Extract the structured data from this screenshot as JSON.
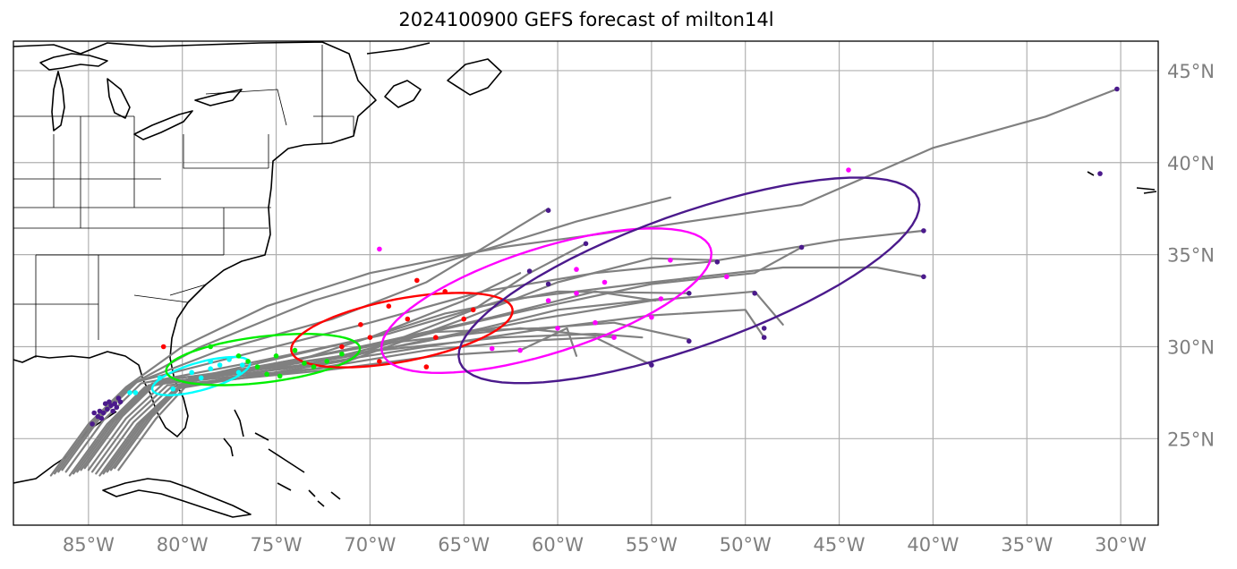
{
  "title": "2024100900 GEFS forecast of milton14l",
  "chart_data": {
    "type": "map",
    "title": "2024100900 GEFS forecast of milton14l",
    "projection": "PlateCarree",
    "lon_range": [
      -89,
      -28
    ],
    "lat_range": [
      20.3,
      46.6
    ],
    "grid": true,
    "lon_ticks": [
      {
        "value": -85,
        "label": "85°W"
      },
      {
        "value": -80,
        "label": "80°W"
      },
      {
        "value": -75,
        "label": "75°W"
      },
      {
        "value": -70,
        "label": "70°W"
      },
      {
        "value": -65,
        "label": "65°W"
      },
      {
        "value": -60,
        "label": "60°W"
      },
      {
        "value": -55,
        "label": "55°W"
      },
      {
        "value": -50,
        "label": "50°W"
      },
      {
        "value": -45,
        "label": "45°W"
      },
      {
        "value": -40,
        "label": "40°W"
      },
      {
        "value": -35,
        "label": "35°W"
      },
      {
        "value": -30,
        "label": "30°W"
      }
    ],
    "lat_ticks": [
      {
        "value": 25,
        "label": "25°N"
      },
      {
        "value": 30,
        "label": "30°N"
      },
      {
        "value": 35,
        "label": "35°N"
      },
      {
        "value": 40,
        "label": "40°N"
      },
      {
        "value": 45,
        "label": "45°N"
      }
    ],
    "colors": {
      "track": "#808080",
      "coast": "#000000",
      "grid": "#b0b0b0",
      "stage1": "#4b1a8c",
      "stage2": "#00ffff",
      "stage3": "#00ee00",
      "stage4": "#ff0000",
      "stage5": "#ff00ff",
      "stage6": "#4b1a8c"
    },
    "ellipses": [
      {
        "color": "#00ffff",
        "center": [
          -79.0,
          28.4
        ],
        "semi_major": 2.7,
        "semi_minor": 0.75,
        "angle": 16
      },
      {
        "color": "#00ee00",
        "center": [
          -75.7,
          29.3
        ],
        "semi_major": 5.2,
        "semi_minor": 1.25,
        "angle": 7
      },
      {
        "color": "#ff0000",
        "center": [
          -68.3,
          30.9
        ],
        "semi_major": 6.0,
        "semi_minor": 1.7,
        "angle": 11
      },
      {
        "color": "#ff00ff",
        "center": [
          -60.6,
          32.5
        ],
        "semi_major": 9.2,
        "semi_minor": 2.85,
        "angle": 18
      },
      {
        "color": "#4b1a8c",
        "center": [
          -53.0,
          33.6
        ],
        "semi_major": 13.0,
        "semi_minor": 3.6,
        "angle": 20
      }
    ],
    "tracks": [
      [
        [
          -87.0,
          23.0
        ],
        [
          -85.0,
          25.8
        ],
        [
          -83.0,
          27.8
        ],
        [
          -80.0,
          30.0
        ],
        [
          -75.5,
          32.2
        ],
        [
          -70.0,
          34.0
        ],
        [
          -63.0,
          35.4
        ],
        [
          -55.0,
          36.5
        ],
        [
          -47.0,
          37.7
        ],
        [
          -40.0,
          40.8
        ],
        [
          -34.0,
          42.5
        ],
        [
          -30.2,
          44.0
        ]
      ],
      [
        [
          -86.8,
          23.1
        ],
        [
          -84.8,
          25.9
        ],
        [
          -82.8,
          27.9
        ],
        [
          -79.0,
          30.0
        ],
        [
          -73.0,
          32.5
        ],
        [
          -66.0,
          34.6
        ],
        [
          -59.0,
          36.8
        ],
        [
          -54.0,
          38.1
        ]
      ],
      [
        [
          -86.6,
          23.2
        ],
        [
          -84.6,
          26.0
        ],
        [
          -82.6,
          28.0
        ],
        [
          -78.0,
          29.8
        ],
        [
          -72.0,
          31.5
        ],
        [
          -67.0,
          33.5
        ],
        [
          -60.5,
          37.5
        ]
      ],
      [
        [
          -86.4,
          23.3
        ],
        [
          -84.4,
          26.1
        ],
        [
          -82.4,
          28.1
        ],
        [
          -77.0,
          29.5
        ],
        [
          -70.0,
          31.3
        ],
        [
          -64.0,
          33.0
        ],
        [
          -58.0,
          34.0
        ],
        [
          -52.0,
          34.6
        ],
        [
          -45.0,
          35.8
        ],
        [
          -40.5,
          36.3
        ]
      ],
      [
        [
          -86.2,
          23.2
        ],
        [
          -84.2,
          26.0
        ],
        [
          -82.2,
          28.0
        ],
        [
          -76.0,
          29.2
        ],
        [
          -69.0,
          30.7
        ],
        [
          -63.0,
          32.5
        ],
        [
          -55.0,
          33.5
        ],
        [
          -48.0,
          34.3
        ],
        [
          -43.0,
          34.3
        ],
        [
          -40.5,
          33.8
        ]
      ],
      [
        [
          -86.0,
          23.0
        ],
        [
          -84.0,
          25.8
        ],
        [
          -82.0,
          27.8
        ],
        [
          -75.5,
          29.0
        ],
        [
          -68.0,
          30.5
        ],
        [
          -61.5,
          32.0
        ],
        [
          -55.0,
          33.4
        ],
        [
          -49.5,
          34.0
        ],
        [
          -47.0,
          35.4
        ]
      ],
      [
        [
          -85.8,
          23.1
        ],
        [
          -83.8,
          25.9
        ],
        [
          -81.8,
          27.9
        ],
        [
          -75.0,
          28.9
        ],
        [
          -67.5,
          30.2
        ],
        [
          -61.0,
          31.5
        ],
        [
          -55.0,
          32.5
        ],
        [
          -49.5,
          33.0
        ],
        [
          -48.0,
          31.2
        ]
      ],
      [
        [
          -85.6,
          23.2
        ],
        [
          -83.6,
          26.0
        ],
        [
          -81.6,
          28.0
        ],
        [
          -74.5,
          28.8
        ],
        [
          -67.0,
          30.0
        ],
        [
          -60.5,
          31.0
        ],
        [
          -55.0,
          31.7
        ],
        [
          -50.0,
          32.0
        ],
        [
          -49.0,
          30.5
        ]
      ],
      [
        [
          -85.4,
          23.3
        ],
        [
          -83.4,
          26.1
        ],
        [
          -81.4,
          28.1
        ],
        [
          -74.0,
          29.2
        ],
        [
          -66.0,
          31.8
        ],
        [
          -60.0,
          33.0
        ],
        [
          -53.0,
          32.9
        ]
      ],
      [
        [
          -85.2,
          23.4
        ],
        [
          -83.2,
          26.2
        ],
        [
          -81.2,
          28.2
        ],
        [
          -73.5,
          29.0
        ],
        [
          -66.5,
          30.8
        ],
        [
          -61.0,
          31.0
        ],
        [
          -57.0,
          31.3
        ],
        [
          -53.0,
          30.4
        ]
      ],
      [
        [
          -85.0,
          23.3
        ],
        [
          -83.0,
          26.1
        ],
        [
          -81.0,
          28.0
        ],
        [
          -73.0,
          28.8
        ],
        [
          -67.0,
          29.8
        ],
        [
          -62.0,
          30.3
        ],
        [
          -58.0,
          30.5
        ],
        [
          -55.0,
          29.0
        ]
      ],
      [
        [
          -84.8,
          23.2
        ],
        [
          -82.8,
          26.0
        ],
        [
          -80.8,
          27.9
        ],
        [
          -72.5,
          28.7
        ],
        [
          -66.5,
          29.5
        ],
        [
          -62.0,
          29.8
        ],
        [
          -59.5,
          31.0
        ],
        [
          -59.0,
          29.5
        ]
      ],
      [
        [
          -84.6,
          23.1
        ],
        [
          -82.6,
          25.9
        ],
        [
          -80.6,
          27.8
        ],
        [
          -72.0,
          28.9
        ],
        [
          -65.0,
          31.5
        ],
        [
          -60.0,
          33.5
        ],
        [
          -55.0,
          34.8
        ],
        [
          -51.5,
          34.7
        ]
      ],
      [
        [
          -84.4,
          23.0
        ],
        [
          -82.4,
          25.8
        ],
        [
          -80.4,
          27.7
        ],
        [
          -71.5,
          29.2
        ],
        [
          -64.5,
          32.0
        ],
        [
          -61.5,
          34.0
        ],
        [
          -58.5,
          35.6
        ]
      ],
      [
        [
          -84.2,
          23.1
        ],
        [
          -82.2,
          25.9
        ],
        [
          -80.2,
          27.8
        ],
        [
          -71.0,
          29.5
        ],
        [
          -64.0,
          31.0
        ],
        [
          -60.0,
          32.0
        ],
        [
          -54.5,
          32.6
        ]
      ],
      [
        [
          -84.0,
          23.2
        ],
        [
          -82.0,
          26.0
        ],
        [
          -80.0,
          28.0
        ],
        [
          -70.5,
          30.0
        ],
        [
          -63.5,
          31.6
        ],
        [
          -58.0,
          33.0
        ],
        [
          -54.8,
          32.5
        ]
      ],
      [
        [
          -83.8,
          23.3
        ],
        [
          -81.8,
          26.1
        ],
        [
          -79.8,
          28.2
        ],
        [
          -70.0,
          30.5
        ],
        [
          -65.0,
          32.5
        ],
        [
          -62.0,
          34.0
        ]
      ],
      [
        [
          -83.6,
          23.4
        ],
        [
          -81.6,
          26.2
        ],
        [
          -79.6,
          28.3
        ],
        [
          -69.5,
          29.8
        ],
        [
          -63.0,
          30.5
        ],
        [
          -58.0,
          30.7
        ],
        [
          -55.5,
          30.5
        ]
      ],
      [
        [
          -83.4,
          23.3
        ],
        [
          -81.4,
          26.1
        ],
        [
          -79.4,
          28.3
        ],
        [
          -69.0,
          30.2
        ],
        [
          -62.0,
          31.0
        ],
        [
          -57.0,
          30.5
        ]
      ]
    ],
    "points": [
      {
        "color": "#4b1a8c",
        "pts": [
          [
            -84.5,
            26.2
          ],
          [
            -84.0,
            26.6
          ],
          [
            -83.6,
            26.9
          ],
          [
            -83.3,
            27.0
          ],
          [
            -84.8,
            25.8
          ],
          [
            -84.2,
            26.4
          ],
          [
            -83.8,
            26.8
          ],
          [
            -84.4,
            26.5
          ],
          [
            -83.9,
            27.0
          ],
          [
            -83.5,
            26.7
          ],
          [
            -84.7,
            26.4
          ],
          [
            -84.1,
            26.9
          ],
          [
            -83.7,
            26.5
          ],
          [
            -84.3,
            26.1
          ],
          [
            -83.4,
            27.2
          ]
        ]
      },
      {
        "color": "#00ffff",
        "pts": [
          [
            -82.8,
            27.5
          ],
          [
            -82.5,
            27.5
          ],
          [
            -81.2,
            28.3
          ],
          [
            -79.5,
            28.6
          ],
          [
            -78.5,
            28.8
          ],
          [
            -78.0,
            29.0
          ],
          [
            -77.5,
            29.3
          ],
          [
            -76.8,
            29.0
          ],
          [
            -79.0,
            28.3
          ],
          [
            -80.5,
            27.7
          ],
          [
            -78.5,
            29.2
          ],
          [
            -77.0,
            28.6
          ]
        ]
      },
      {
        "color": "#00ee00",
        "pts": [
          [
            -78.5,
            30.0
          ],
          [
            -76.5,
            29.2
          ],
          [
            -75.5,
            28.5
          ],
          [
            -74.8,
            28.4
          ],
          [
            -73.0,
            28.9
          ],
          [
            -72.3,
            29.2
          ],
          [
            -71.5,
            29.6
          ],
          [
            -74.0,
            29.8
          ],
          [
            -76.0,
            28.9
          ],
          [
            -73.5,
            29.1
          ],
          [
            -77.0,
            29.5
          ],
          [
            -75.0,
            29.5
          ]
        ]
      },
      {
        "color": "#ff0000",
        "pts": [
          [
            -81.0,
            30.0
          ],
          [
            -69.5,
            29.2
          ],
          [
            -67.0,
            28.9
          ],
          [
            -66.5,
            30.5
          ],
          [
            -65.0,
            31.5
          ],
          [
            -64.5,
            32.0
          ],
          [
            -67.5,
            33.6
          ],
          [
            -70.5,
            31.2
          ],
          [
            -69.0,
            32.2
          ],
          [
            -70.0,
            30.5
          ],
          [
            -66.0,
            33.0
          ],
          [
            -68.0,
            31.5
          ],
          [
            -71.5,
            30.0
          ]
        ]
      },
      {
        "color": "#ff00ff",
        "pts": [
          [
            -69.5,
            35.3
          ],
          [
            -63.5,
            29.9
          ],
          [
            -62.0,
            29.8
          ],
          [
            -60.0,
            31.0
          ],
          [
            -59.0,
            32.9
          ],
          [
            -58.0,
            31.3
          ],
          [
            -57.0,
            30.5
          ],
          [
            -55.0,
            31.6
          ],
          [
            -54.5,
            32.6
          ],
          [
            -59.0,
            34.2
          ],
          [
            -54.0,
            34.7
          ],
          [
            -60.5,
            32.5
          ],
          [
            -57.5,
            33.5
          ],
          [
            -51.0,
            33.8
          ],
          [
            -44.5,
            39.6
          ]
        ]
      },
      {
        "color": "#4b1a8c",
        "pts": [
          [
            -60.5,
            37.4
          ],
          [
            -58.5,
            35.6
          ],
          [
            -61.5,
            34.1
          ],
          [
            -60.5,
            33.4
          ],
          [
            -53.0,
            32.9
          ],
          [
            -49.5,
            32.9
          ],
          [
            -49.0,
            31.0
          ],
          [
            -49.0,
            30.5
          ],
          [
            -53.0,
            30.3
          ],
          [
            -55.0,
            29.0
          ],
          [
            -51.5,
            34.6
          ],
          [
            -47.0,
            35.4
          ],
          [
            -40.5,
            36.3
          ],
          [
            -40.5,
            33.8
          ],
          [
            -30.2,
            44.0
          ],
          [
            -31.1,
            39.4
          ]
        ]
      }
    ]
  }
}
